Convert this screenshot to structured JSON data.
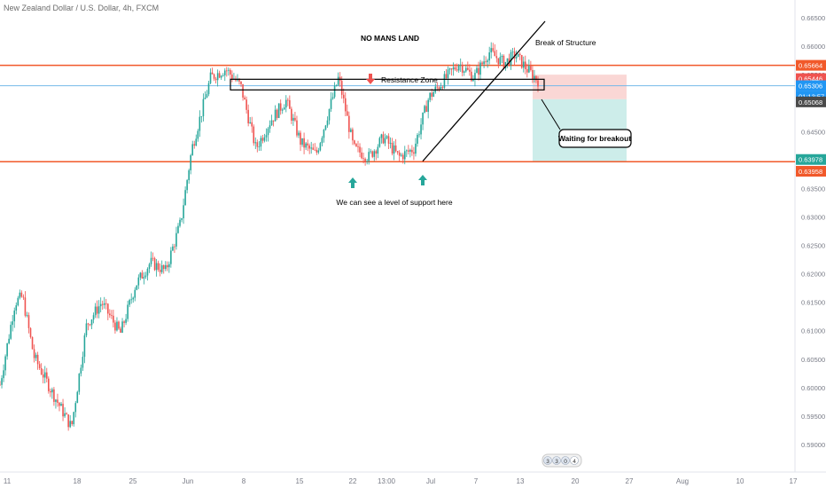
{
  "header": {
    "symbol_line": "New Zealand Dollar / U.S. Dollar, 4h, FXCM"
  },
  "colors": {
    "up": "#26a69a",
    "down": "#ef5350",
    "level": "#f1592a",
    "blue_line": "#74b9e8",
    "axis_text": "#787b86",
    "stop_zone": "#f8c9c7",
    "target_zone": "#c8ebe8",
    "current_price_bg": "#2196f3",
    "annotation": "#000000"
  },
  "chart_data": {
    "type": "candlestick",
    "title": "New Zealand Dollar / U.S. Dollar, 4h, FXCM",
    "ylim": [
      0.5875,
      0.67
    ],
    "y_ticks": [
      "0.66500",
      "0.66000",
      "0.65500",
      "0.65000",
      "0.64500",
      "0.64000",
      "0.63500",
      "0.63000",
      "0.62500",
      "0.62000",
      "0.61500",
      "0.61000",
      "0.60500",
      "0.60000",
      "0.59500",
      "0.59000"
    ],
    "x_ticks": [
      "11",
      "18",
      "25",
      "Jun",
      "8",
      "15",
      "22",
      "13:00",
      "Jul",
      "7",
      "13",
      "20",
      "27",
      "Aug",
      "10",
      "17"
    ],
    "price_path": [
      {
        "t": 0,
        "p": 0.6005
      },
      {
        "t": 0.02,
        "p": 0.615
      },
      {
        "t": 0.03,
        "p": 0.616
      },
      {
        "t": 0.045,
        "p": 0.6055
      },
      {
        "t": 0.07,
        "p": 0.599
      },
      {
        "t": 0.095,
        "p": 0.593
      },
      {
        "t": 0.115,
        "p": 0.611
      },
      {
        "t": 0.135,
        "p": 0.615
      },
      {
        "t": 0.16,
        "p": 0.6095
      },
      {
        "t": 0.18,
        "p": 0.618
      },
      {
        "t": 0.2,
        "p": 0.622
      },
      {
        "t": 0.22,
        "p": 0.6205
      },
      {
        "t": 0.24,
        "p": 0.629
      },
      {
        "t": 0.255,
        "p": 0.642
      },
      {
        "t": 0.28,
        "p": 0.6545
      },
      {
        "t": 0.3,
        "p": 0.656
      },
      {
        "t": 0.32,
        "p": 0.653
      },
      {
        "t": 0.34,
        "p": 0.642
      },
      {
        "t": 0.36,
        "p": 0.647
      },
      {
        "t": 0.38,
        "p": 0.6505
      },
      {
        "t": 0.4,
        "p": 0.643
      },
      {
        "t": 0.42,
        "p": 0.641
      },
      {
        "t": 0.45,
        "p": 0.6545
      },
      {
        "t": 0.47,
        "p": 0.642
      },
      {
        "t": 0.49,
        "p": 0.6405
      },
      {
        "t": 0.51,
        "p": 0.644
      },
      {
        "t": 0.53,
        "p": 0.6405
      },
      {
        "t": 0.55,
        "p": 0.642
      },
      {
        "t": 0.57,
        "p": 0.651
      },
      {
        "t": 0.59,
        "p": 0.654
      },
      {
        "t": 0.61,
        "p": 0.657
      },
      {
        "t": 0.63,
        "p": 0.6545
      },
      {
        "t": 0.65,
        "p": 0.659
      },
      {
        "t": 0.67,
        "p": 0.657
      },
      {
        "t": 0.685,
        "p": 0.6585
      },
      {
        "t": 0.7,
        "p": 0.656
      },
      {
        "t": 0.715,
        "p": 0.654
      }
    ],
    "levels": [
      {
        "price": 0.65664,
        "label": "0.65664",
        "style": "level"
      },
      {
        "price": 0.65446,
        "label": "0.65446",
        "style": "down"
      },
      {
        "price": 0.65306,
        "label": "0.65306",
        "style": "blue"
      },
      {
        "price": 0.65068,
        "label": "0.65068",
        "style": "gray"
      },
      {
        "price": 0.63978,
        "label": "0.63978",
        "style": "up"
      },
      {
        "price": 0.63958,
        "label": "0.63958",
        "style": "level"
      }
    ],
    "countdown": "01:13:57",
    "annotations": {
      "no_mans_land": "NO MANS LAND",
      "resistance_zone": "Resistance Zone",
      "break_of_structure": "Break of Structure",
      "support_text": "We can see a level of support here",
      "waiting": "Waiting for breakout"
    },
    "watermark_digits": [
      "3",
      "3",
      "0",
      "4"
    ]
  }
}
